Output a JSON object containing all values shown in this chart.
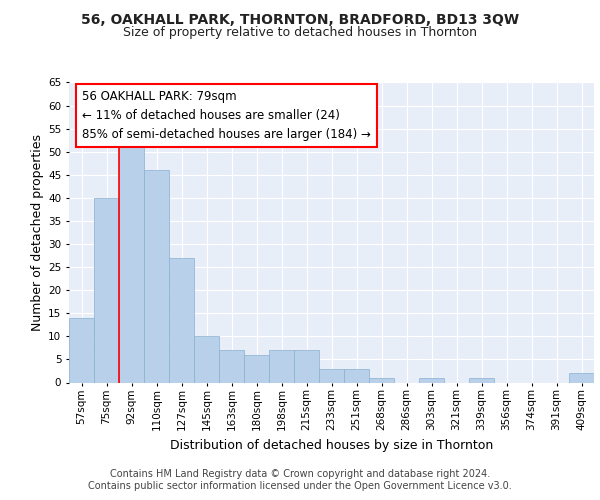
{
  "title1": "56, OAKHALL PARK, THORNTON, BRADFORD, BD13 3QW",
  "title2": "Size of property relative to detached houses in Thornton",
  "xlabel": "Distribution of detached houses by size in Thornton",
  "ylabel": "Number of detached properties",
  "categories": [
    "57sqm",
    "75sqm",
    "92sqm",
    "110sqm",
    "127sqm",
    "145sqm",
    "163sqm",
    "180sqm",
    "198sqm",
    "215sqm",
    "233sqm",
    "251sqm",
    "268sqm",
    "286sqm",
    "303sqm",
    "321sqm",
    "339sqm",
    "356sqm",
    "374sqm",
    "391sqm",
    "409sqm"
  ],
  "values": [
    14,
    40,
    51,
    46,
    27,
    10,
    7,
    6,
    7,
    7,
    3,
    3,
    1,
    0,
    1,
    0,
    1,
    0,
    0,
    0,
    2
  ],
  "bar_color": "#b8d0ea",
  "bar_edge_color": "#8ab0d0",
  "red_line_x": 1.5,
  "ylim": [
    0,
    65
  ],
  "annotation_line1": "56 OAKHALL PARK: 79sqm",
  "annotation_line2": "← 11% of detached houses are smaller (24)",
  "annotation_line3": "85% of semi-detached houses are larger (184) →",
  "footer1": "Contains HM Land Registry data © Crown copyright and database right 2024.",
  "footer2": "Contains public sector information licensed under the Open Government Licence v3.0.",
  "bg_color": "#e8eef8",
  "grid_color": "#ffffff",
  "title1_fontsize": 10,
  "title2_fontsize": 9,
  "axis_label_fontsize": 9,
  "tick_fontsize": 7.5,
  "footer_fontsize": 7,
  "annot_fontsize": 8.5
}
